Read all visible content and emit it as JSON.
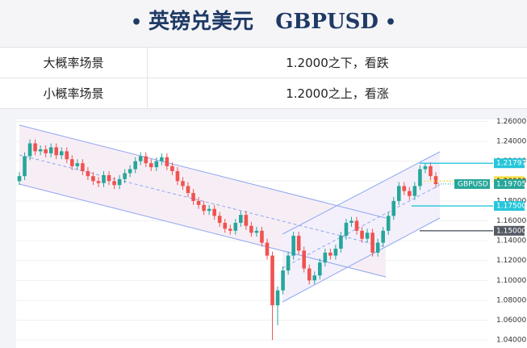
{
  "header": {
    "title_cn": "英镑兑美元",
    "title_en": "GBPUSD"
  },
  "table": {
    "rows": [
      [
        "大概率场景",
        "1.2000之下，看跌"
      ],
      [
        "小概率场景",
        "1.2000之上，看涨"
      ]
    ]
  },
  "chart_data": {
    "type": "candlestick",
    "up_color": "#26a69a",
    "down_color": "#ef5350",
    "grid": true,
    "ylim": [
      1.032,
      1.262
    ],
    "yticks": [
      {
        "value": 1.04,
        "label": "1.04000"
      },
      {
        "value": 1.06,
        "label": "1.06000"
      },
      {
        "value": 1.08,
        "label": "1.08000"
      },
      {
        "value": 1.1,
        "label": "1.10000"
      },
      {
        "value": 1.12,
        "label": "1.12000"
      },
      {
        "value": 1.14,
        "label": "1.14000"
      },
      {
        "value": 1.16,
        "label": "1.16000"
      },
      {
        "value": 1.18,
        "label": "1.18000"
      },
      {
        "value": 1.2,
        "label": "1.20000"
      },
      {
        "value": 1.22,
        "label": "1.22000"
      },
      {
        "value": 1.24,
        "label": "1.24000"
      },
      {
        "value": 1.26,
        "label": "1.26000"
      }
    ],
    "open": [
      1.2,
      1.205,
      1.225,
      1.238,
      1.23,
      1.232,
      1.228,
      1.234,
      1.226,
      1.23,
      1.222,
      1.215,
      1.218,
      1.21,
      1.205,
      1.2,
      1.198,
      1.206,
      1.2,
      1.196,
      1.202,
      1.208,
      1.212,
      1.22,
      1.225,
      1.218,
      1.214,
      1.22,
      1.224,
      1.215,
      1.21,
      1.2,
      1.195,
      1.188,
      1.18,
      1.176,
      1.17,
      1.172,
      1.165,
      1.158,
      1.152,
      1.15,
      1.158,
      1.166,
      1.155,
      1.148,
      1.15,
      1.138,
      1.125,
      1.075,
      1.09,
      1.11,
      1.125,
      1.145,
      1.13,
      1.112,
      1.1,
      1.105,
      1.118,
      1.128,
      1.125,
      1.132,
      1.145,
      1.158,
      1.16,
      1.15,
      1.142,
      1.148,
      1.128,
      1.138,
      1.15,
      1.165,
      1.18,
      1.195,
      1.19,
      1.185,
      1.195,
      1.212,
      1.215,
      1.205
    ],
    "high": [
      1.209,
      1.229,
      1.242,
      1.242,
      1.236,
      1.236,
      1.238,
      1.238,
      1.234,
      1.234,
      1.226,
      1.222,
      1.222,
      1.214,
      1.209,
      1.204,
      1.21,
      1.21,
      1.204,
      1.206,
      1.212,
      1.216,
      1.224,
      1.229,
      1.229,
      1.222,
      1.224,
      1.228,
      1.228,
      1.219,
      1.214,
      1.204,
      1.199,
      1.192,
      1.184,
      1.18,
      1.176,
      1.176,
      1.169,
      1.162,
      1.156,
      1.162,
      1.17,
      1.17,
      1.159,
      1.154,
      1.154,
      1.142,
      1.129,
      1.094,
      1.114,
      1.129,
      1.149,
      1.149,
      1.134,
      1.116,
      1.109,
      1.122,
      1.132,
      1.132,
      1.136,
      1.149,
      1.162,
      1.164,
      1.164,
      1.154,
      1.152,
      1.152,
      1.142,
      1.154,
      1.169,
      1.184,
      1.199,
      1.199,
      1.194,
      1.199,
      1.216,
      1.218,
      1.219,
      1.209
    ],
    "low": [
      1.196,
      1.201,
      1.221,
      1.226,
      1.226,
      1.224,
      1.224,
      1.222,
      1.222,
      1.218,
      1.211,
      1.211,
      1.206,
      1.201,
      1.196,
      1.194,
      1.194,
      1.196,
      1.192,
      1.192,
      1.198,
      1.204,
      1.208,
      1.216,
      1.214,
      1.21,
      1.21,
      1.216,
      1.211,
      1.206,
      1.196,
      1.191,
      1.184,
      1.176,
      1.172,
      1.166,
      1.166,
      1.161,
      1.154,
      1.148,
      1.146,
      1.146,
      1.154,
      1.151,
      1.144,
      1.144,
      1.134,
      1.121,
      1.04,
      1.055,
      1.086,
      1.106,
      1.121,
      1.126,
      1.108,
      1.096,
      1.096,
      1.101,
      1.114,
      1.121,
      1.121,
      1.128,
      1.141,
      1.154,
      1.146,
      1.138,
      1.138,
      1.124,
      1.124,
      1.134,
      1.146,
      1.161,
      1.176,
      1.186,
      1.181,
      1.181,
      1.191,
      1.208,
      1.201,
      1.193
    ],
    "close": [
      1.205,
      1.225,
      1.238,
      1.23,
      1.232,
      1.228,
      1.234,
      1.226,
      1.23,
      1.222,
      1.215,
      1.218,
      1.21,
      1.205,
      1.2,
      1.198,
      1.206,
      1.2,
      1.196,
      1.202,
      1.208,
      1.212,
      1.22,
      1.225,
      1.218,
      1.214,
      1.22,
      1.224,
      1.215,
      1.21,
      1.2,
      1.195,
      1.188,
      1.18,
      1.176,
      1.17,
      1.172,
      1.165,
      1.158,
      1.152,
      1.15,
      1.158,
      1.166,
      1.155,
      1.148,
      1.15,
      1.138,
      1.125,
      1.075,
      1.09,
      1.11,
      1.125,
      1.145,
      1.13,
      1.112,
      1.1,
      1.105,
      1.118,
      1.128,
      1.125,
      1.132,
      1.145,
      1.158,
      1.16,
      1.15,
      1.142,
      1.148,
      1.128,
      1.138,
      1.15,
      1.165,
      1.18,
      1.195,
      1.19,
      1.185,
      1.195,
      1.212,
      1.215,
      1.205,
      1.197
    ],
    "levels": [
      {
        "value": 1.21797,
        "label": "1.21797",
        "color": "#26c6da"
      },
      {
        "value": 1.2,
        "label": "1.20000",
        "color": "#f5e04a"
      },
      {
        "value": 1.175,
        "label": "1.17500",
        "color": "#26c6da"
      },
      {
        "value": 1.15,
        "label": "1.15000",
        "color": "#555a64"
      }
    ],
    "current": {
      "name": "GBPUSD",
      "value": 1.19705,
      "label": "1.19705",
      "color": "#26a69a"
    }
  }
}
